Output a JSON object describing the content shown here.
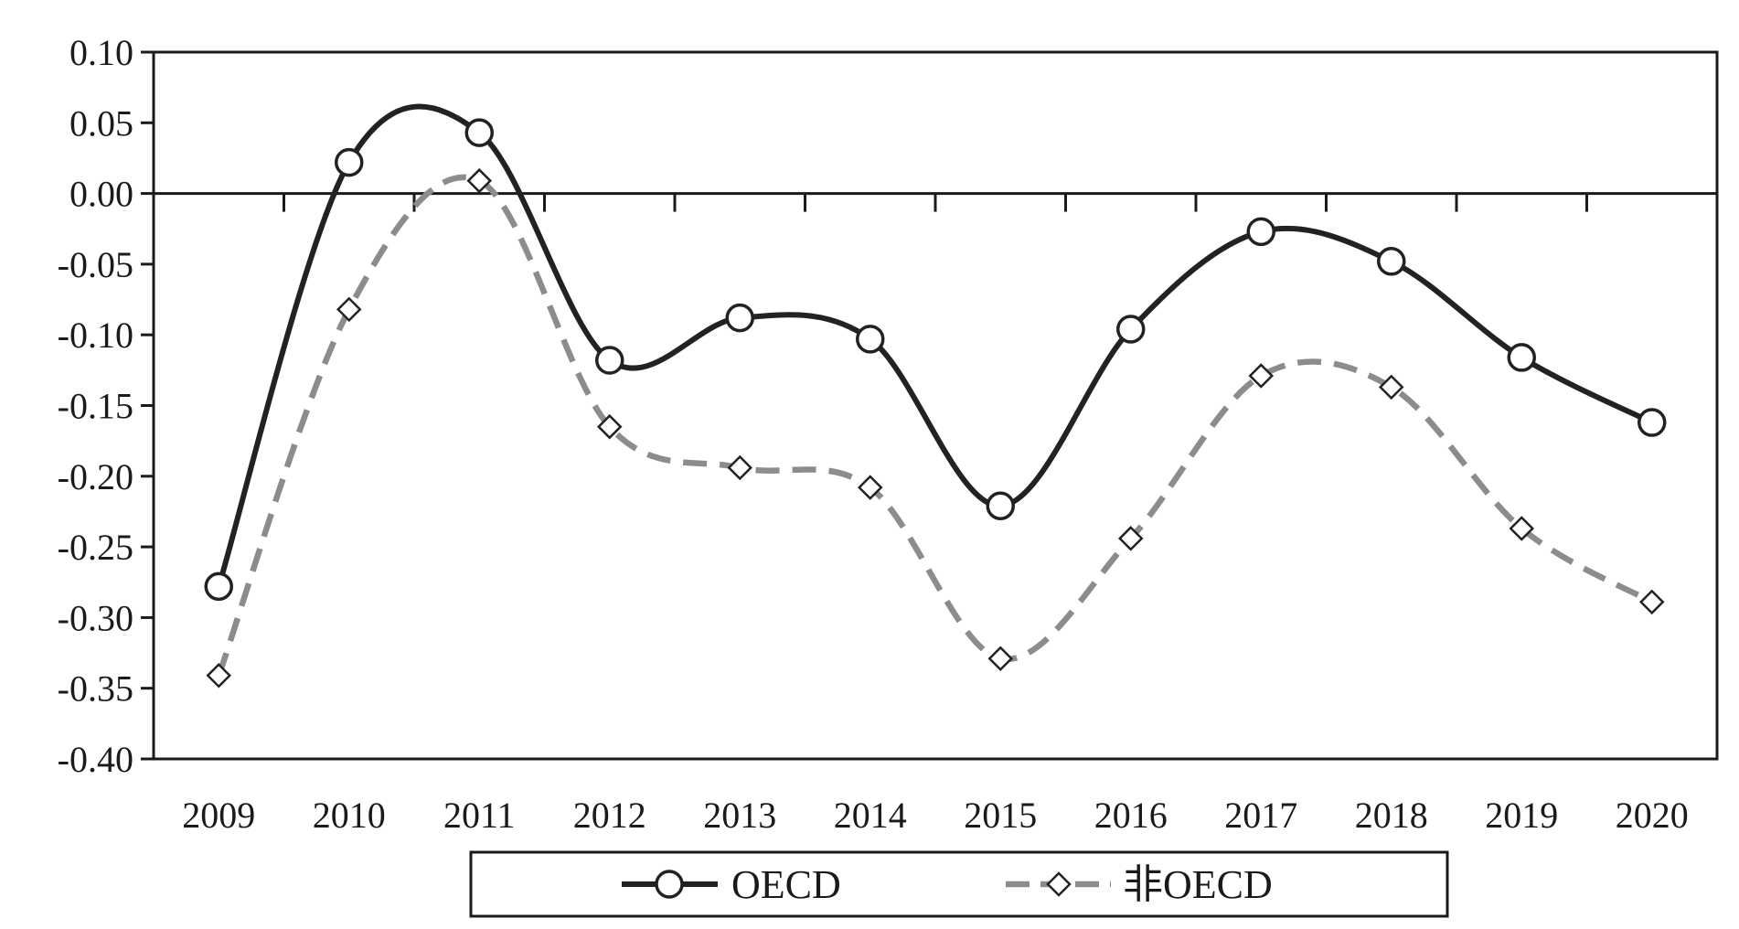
{
  "chart_data": {
    "type": "line",
    "x": [
      "2009",
      "2010",
      "2011",
      "2012",
      "2013",
      "2014",
      "2015",
      "2016",
      "2017",
      "2018",
      "2019",
      "2020"
    ],
    "series": [
      {
        "name": "OECD",
        "values": [
          -0.278,
          0.022,
          0.043,
          -0.118,
          -0.088,
          -0.103,
          -0.221,
          -0.096,
          -0.027,
          -0.048,
          -0.116,
          -0.162
        ],
        "color": "#222222",
        "style": "solid",
        "marker": "circle"
      },
      {
        "name": "非OECD",
        "values": [
          -0.341,
          -0.082,
          0.009,
          -0.165,
          -0.194,
          -0.208,
          -0.329,
          -0.244,
          -0.129,
          -0.137,
          -0.237,
          -0.289
        ],
        "color": "#8c8c8c",
        "style": "dashed",
        "marker": "diamond"
      }
    ],
    "ylim": [
      -0.4,
      0.1
    ],
    "yticks": [
      "0.10",
      "0.05",
      "0.00",
      "-0.05",
      "-0.10",
      "-0.15",
      "-0.20",
      "-0.25",
      "-0.30",
      "-0.35",
      "-0.40"
    ],
    "title": "",
    "xlabel": "",
    "ylabel": "",
    "legend_position": "bottom-center",
    "grid": false
  }
}
